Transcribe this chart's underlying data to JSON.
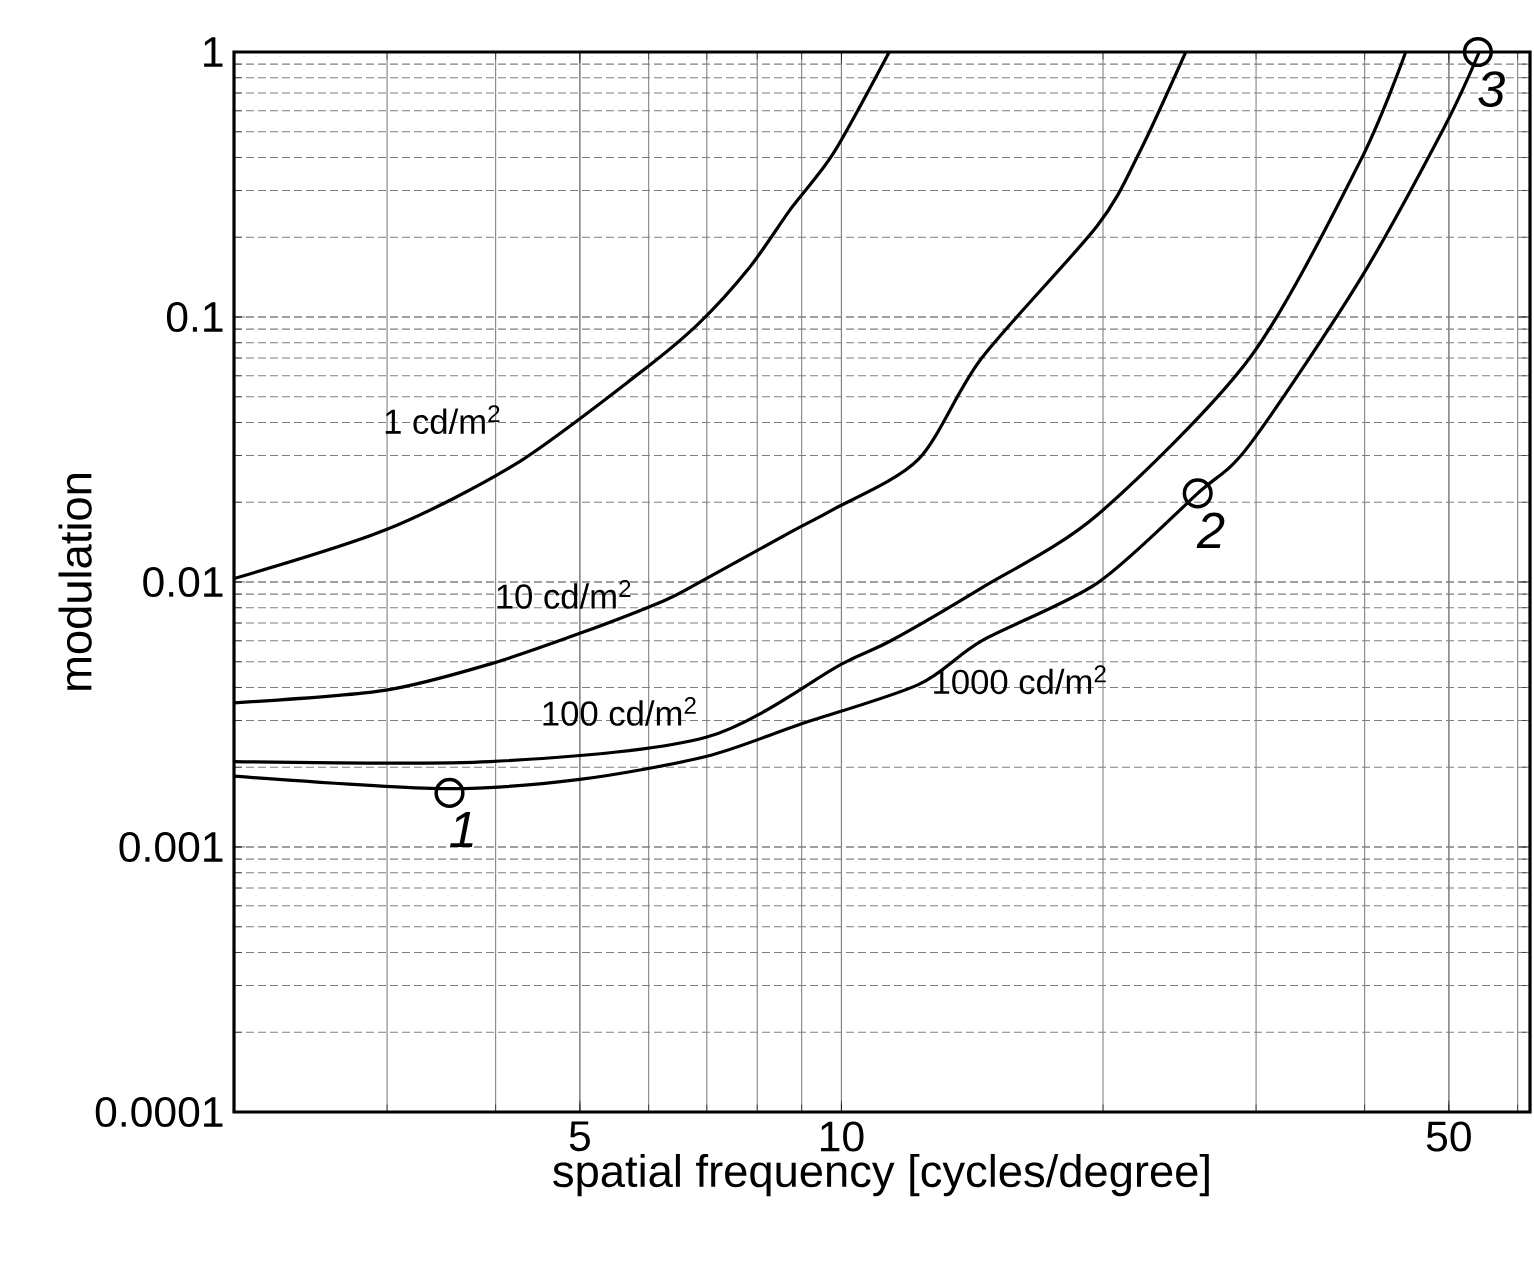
{
  "chart_data": {
    "type": "line",
    "xlabel": "spatial frequency [cycles/degree]",
    "ylabel": "modulation",
    "log": "xy",
    "grid": true,
    "xlim": [
      2,
      62
    ],
    "ylim": [
      0.0001,
      1
    ],
    "xticks": [
      5,
      10,
      50
    ],
    "yticks": [
      0.0001,
      0.001,
      0.01,
      0.1,
      1
    ],
    "series": [
      {
        "name": "1 cd/m$^{2}$",
        "color": "#000000",
        "x": [
          2,
          3.0,
          4.22,
          5.84,
          6.84,
          7.83,
          8.76,
          9.79,
          11.35
        ],
        "values": [
          0.0103,
          0.0158,
          0.0279,
          0.061,
          0.094,
          0.153,
          0.258,
          0.415,
          1.0
        ]
      },
      {
        "name": "10 cd/m$^{2}$",
        "color": "#000000",
        "x": [
          2,
          2.98,
          3.94,
          5.0,
          6.25,
          6.84,
          8.76,
          9.79,
          12.26,
          14.5,
          19.7,
          22.0,
          24.9
        ],
        "values": [
          0.0035,
          0.0039,
          0.0049,
          0.0064,
          0.0085,
          0.0099,
          0.0155,
          0.0188,
          0.029,
          0.07,
          0.221,
          0.415,
          1.0
        ]
      },
      {
        "name": "100 cd/m$^{2}$",
        "color": "#000000",
        "x": [
          2,
          3.94,
          7.0,
          10.0,
          11.4,
          14.5,
          19.7,
          29.5,
          39.5,
          44.6
        ],
        "values": [
          0.0021,
          0.0021,
          0.0026,
          0.0049,
          0.006,
          0.0095,
          0.0179,
          0.07,
          0.385,
          1.0
        ]
      },
      {
        "name": "1000 cd/m$^{2}$",
        "color": "#000000",
        "x": [
          2,
          3.49,
          5.0,
          7.0,
          8.95,
          12.26,
          14.5,
          19.7,
          25.7,
          29.5,
          39.5,
          49.4,
          54.2
        ],
        "values": [
          0.00185,
          0.00166,
          0.0018,
          0.0022,
          0.0029,
          0.0041,
          0.006,
          0.0099,
          0.0216,
          0.033,
          0.138,
          0.52,
          1.0
        ]
      },
      {
        "type": "scatter",
        "marker": "circle",
        "color": "#000000",
        "x": [
          3.54,
          25.7,
          54.0
        ],
        "values": [
          0.0016,
          0.0216,
          1.0
        ]
      }
    ],
    "annotations": [
      {
        "text": "1",
        "x": 3.54,
        "y": 0.0016
      },
      {
        "text": "2",
        "x": 25.7,
        "y": 0.0216
      },
      {
        "text": "3",
        "x": 54.0,
        "y": 1.0
      }
    ]
  }
}
